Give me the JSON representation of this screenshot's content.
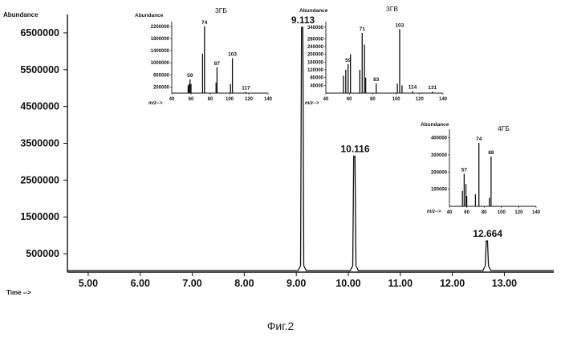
{
  "chart_data": [
    {
      "type": "line",
      "title": "",
      "ylabel": "Abundance",
      "xlabel": "Time -->",
      "xlim": [
        4.6,
        13.95
      ],
      "ylim": [
        0,
        7000000
      ],
      "xticks": [
        "5.00",
        "6.00",
        "7.00",
        "8.00",
        "9.00",
        "10.00",
        "11.00",
        "12.00",
        "13.00"
      ],
      "yticks": [
        "500000",
        "1500000",
        "2500000",
        "3500000",
        "4500000",
        "5500000",
        "6500000"
      ],
      "peaks": [
        {
          "x": 9.113,
          "y": 6650000,
          "label": "9.113"
        },
        {
          "x": 10.116,
          "y": 3150000,
          "label": "10.116"
        },
        {
          "x": 12.664,
          "y": 850000,
          "label": "12.664"
        }
      ]
    },
    {
      "type": "bar",
      "title": "3ГБ",
      "ylabel": "Abundance",
      "xlabel": "m/z-->",
      "xlim": [
        40,
        140
      ],
      "ylim": [
        0,
        2300000
      ],
      "yticks": [
        "200000",
        "600000",
        "1000000",
        "1400000",
        "1800000",
        "2200000"
      ],
      "xticks": [
        "40",
        "60",
        "80",
        "100",
        "120",
        "140"
      ],
      "x": [
        57,
        58,
        59,
        60,
        72,
        74,
        86,
        87,
        101,
        103,
        117
      ],
      "values": [
        250000,
        300000,
        450000,
        300000,
        1300000,
        2200000,
        350000,
        850000,
        300000,
        1150000,
        40000
      ],
      "labels": [
        "59",
        "74",
        "87",
        "103",
        "117"
      ]
    },
    {
      "type": "bar",
      "title": "3ГВ",
      "ylabel": "Abundance",
      "xlabel": "m/z-->",
      "xlim": [
        40,
        140
      ],
      "ylim": [
        0,
        360000
      ],
      "yticks": [
        "40000",
        "80000",
        "120000",
        "160000",
        "200000",
        "240000",
        "280000",
        "340000"
      ],
      "xticks": [
        "40",
        "60",
        "80",
        "100",
        "120",
        "140"
      ],
      "x": [
        55,
        57,
        59,
        61,
        69,
        71,
        73,
        74,
        83,
        101,
        103,
        105,
        114,
        131
      ],
      "values": [
        90000,
        120000,
        150000,
        200000,
        120000,
        310000,
        250000,
        80000,
        50000,
        50000,
        330000,
        40000,
        10000,
        8000
      ],
      "labels": [
        "59",
        "71",
        "83",
        "103",
        "114",
        "131"
      ]
    },
    {
      "type": "bar",
      "title": "4ГБ",
      "ylabel": "Abundance",
      "xlabel": "m/z-->",
      "xlim": [
        40,
        140
      ],
      "ylim": [
        0,
        440000
      ],
      "yticks": [
        "100000",
        "200000",
        "300000",
        "400000"
      ],
      "xticks": [
        "40",
        "60",
        "80",
        "100",
        "120",
        "140"
      ],
      "x": [
        55,
        57,
        59,
        60,
        70,
        74,
        86,
        88
      ],
      "values": [
        90000,
        190000,
        130000,
        60000,
        70000,
        370000,
        50000,
        290000
      ],
      "labels": [
        "57",
        "74",
        "88"
      ]
    }
  ],
  "caption": "Фиг.2"
}
